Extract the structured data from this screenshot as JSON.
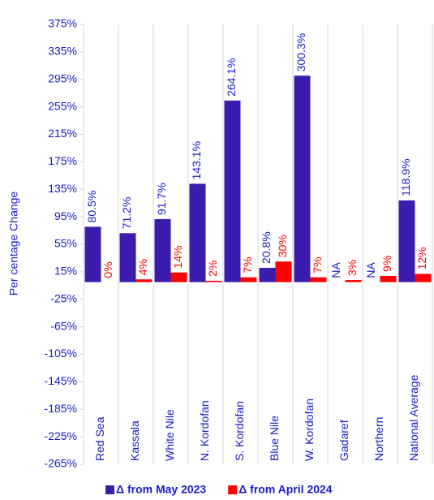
{
  "chart_data": {
    "type": "bar",
    "y_label": "Per centage Change",
    "categories": [
      "Red Sea",
      "Kassala",
      "White Nile",
      "N. Kordofan",
      "S. Kordofan",
      "Blue Nile",
      "W. Kordofan",
      "Gadaref",
      "Northern",
      "National Average"
    ],
    "series": [
      {
        "name": "Δ from May 2023",
        "color": "#3b1cae",
        "label_color": "#1a1acc",
        "values": [
          80.5,
          71.2,
          91.7,
          143.1,
          264.1,
          20.8,
          300.3,
          null,
          null,
          118.9
        ],
        "value_labels": [
          "80.5%",
          "71.2%",
          "91.7%",
          "143.1%",
          "264.1%",
          "20.8%",
          "300.3%",
          "NA",
          "NA",
          "118.9%"
        ]
      },
      {
        "name": "Δ from April 2024",
        "color": "#ff0000",
        "label_color": "#ff0000",
        "values": [
          0,
          4,
          14,
          2,
          7,
          30,
          7,
          3,
          9,
          12
        ],
        "value_labels": [
          "0%",
          "4%",
          "14%",
          "2%",
          "7%",
          "30%",
          "7%",
          "3%",
          "9%",
          "12%"
        ]
      }
    ],
    "ylim": [
      -265,
      375
    ],
    "yticks": [
      {
        "value": -265,
        "label": "-265%"
      },
      {
        "value": -225,
        "label": "-225%"
      },
      {
        "value": -185,
        "label": "-185%"
      },
      {
        "value": -145,
        "label": "-145%"
      },
      {
        "value": -105,
        "label": "-105%"
      },
      {
        "value": -65,
        "label": "-65%"
      },
      {
        "value": -25,
        "label": "-25%"
      },
      {
        "value": 15,
        "label": "15%"
      },
      {
        "value": 55,
        "label": "55%"
      },
      {
        "value": 95,
        "label": "95%"
      },
      {
        "value": 135,
        "label": "135%"
      },
      {
        "value": 175,
        "label": "175%"
      },
      {
        "value": 215,
        "label": "215%"
      },
      {
        "value": 255,
        "label": "255%"
      },
      {
        "value": 295,
        "label": "295%"
      },
      {
        "value": 335,
        "label": "335%"
      },
      {
        "value": 375,
        "label": "375%"
      }
    ],
    "grid": true,
    "legend": "bottom"
  }
}
